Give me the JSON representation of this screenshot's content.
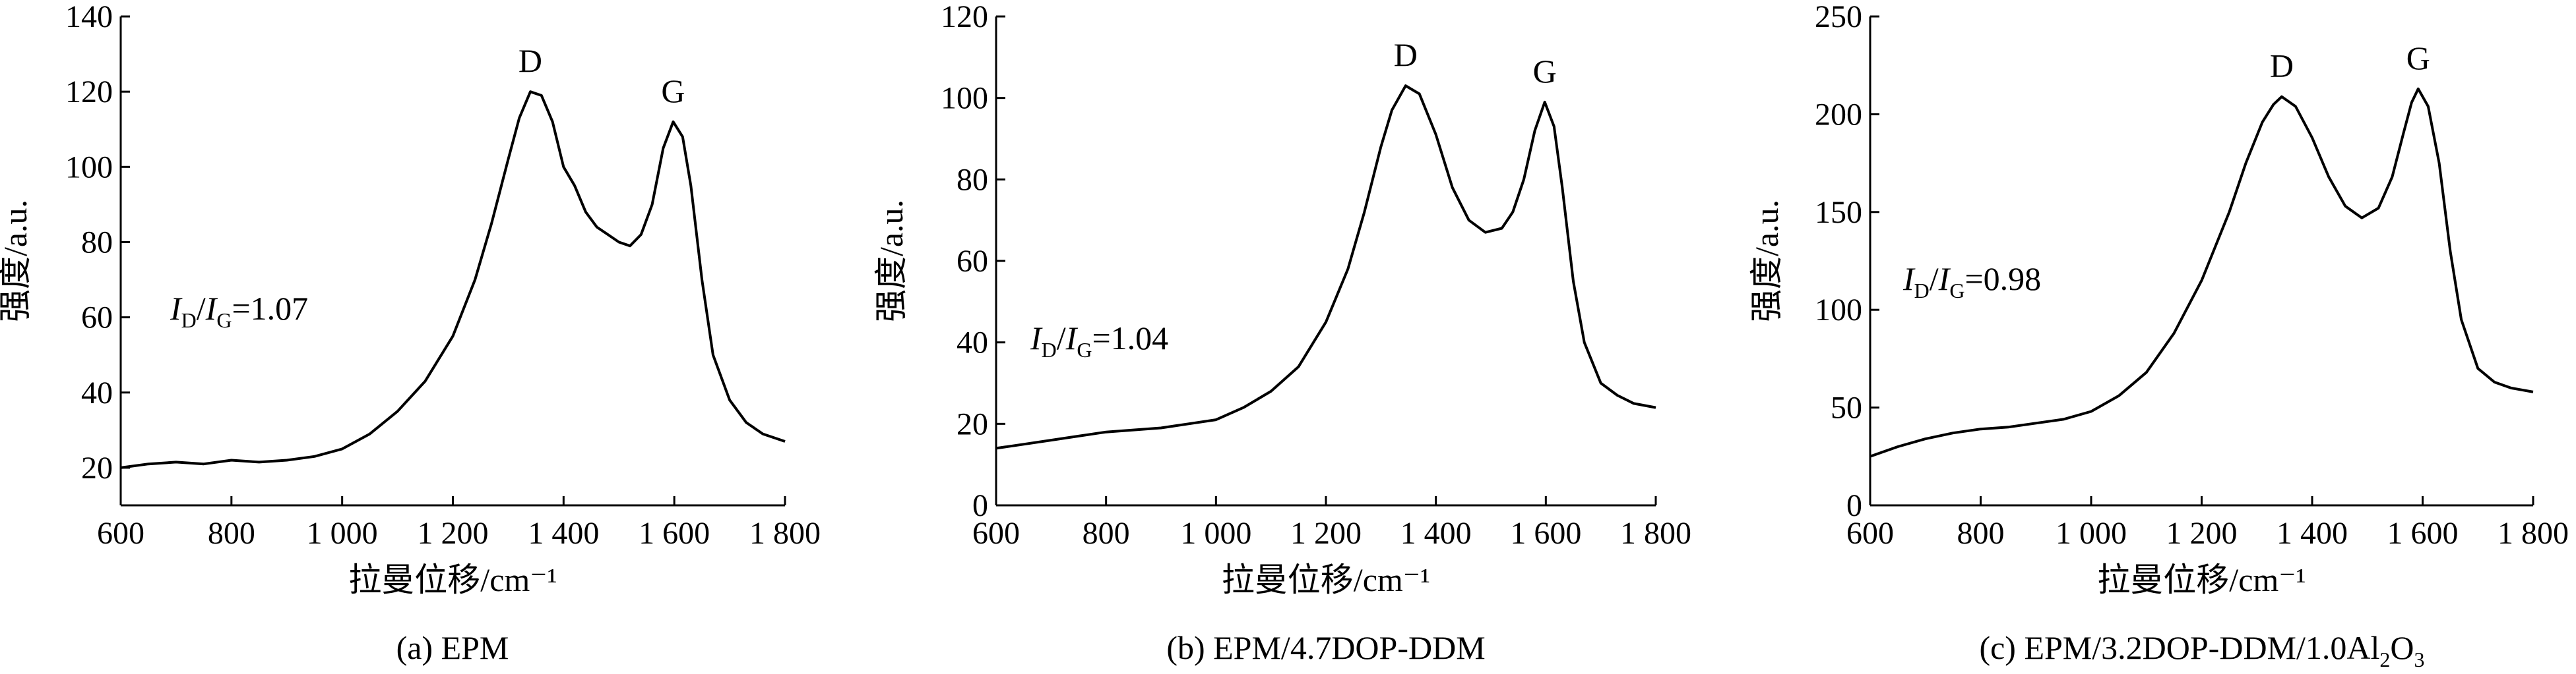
{
  "chart_data": [
    {
      "type": "line",
      "caption": "(a) EPM",
      "xlabel": "拉曼位移/cm⁻¹",
      "ylabel": "强度/a.u.",
      "xlim": [
        600,
        1800
      ],
      "ylim": [
        10,
        140
      ],
      "xticks": [
        600,
        800,
        1000,
        1200,
        1400,
        1600,
        1800
      ],
      "xtick_labels": [
        "600",
        "800",
        "1 000",
        "1 200",
        "1 400",
        "1 600",
        "1 800"
      ],
      "yticks": [
        20,
        40,
        60,
        80,
        100,
        120,
        140
      ],
      "ytick_labels": [
        "20",
        "40",
        "60",
        "80",
        "100",
        "120",
        "140"
      ],
      "ratio": {
        "main": "I",
        "sub1": "D",
        "slash": "/I",
        "sub2": "G",
        "value": "=1.07"
      },
      "peaks": [
        {
          "label": "D",
          "x": 1340,
          "y": 120
        },
        {
          "label": "G",
          "x": 1598,
          "y": 112
        }
      ],
      "series": [
        {
          "x": [
            600,
            650,
            700,
            750,
            800,
            850,
            900,
            950,
            1000,
            1050,
            1100,
            1150,
            1200,
            1240,
            1270,
            1300,
            1320,
            1340,
            1360,
            1380,
            1400,
            1420,
            1440,
            1460,
            1480,
            1500,
            1520,
            1540,
            1560,
            1580,
            1598,
            1615,
            1630,
            1650,
            1670,
            1700,
            1730,
            1760,
            1800
          ],
          "y": [
            20,
            21,
            21.5,
            21,
            22,
            21.5,
            22,
            23,
            25,
            29,
            35,
            43,
            55,
            70,
            85,
            102,
            113,
            120,
            119,
            112,
            100,
            95,
            88,
            84,
            82,
            80,
            79,
            82,
            90,
            105,
            112,
            108,
            95,
            70,
            50,
            38,
            32,
            29,
            27
          ]
        }
      ]
    },
    {
      "type": "line",
      "caption": "(b) EPM/4.7DOP-DDM",
      "xlabel": "拉曼位移/cm⁻¹",
      "ylabel": "强度/a.u.",
      "xlim": [
        600,
        1800
      ],
      "ylim": [
        0,
        120
      ],
      "xticks": [
        600,
        800,
        1000,
        1200,
        1400,
        1600,
        1800
      ],
      "xtick_labels": [
        "600",
        "800",
        "1 000",
        "1 200",
        "1 400",
        "1 600",
        "1 800"
      ],
      "yticks": [
        0,
        20,
        40,
        60,
        80,
        100,
        120
      ],
      "ytick_labels": [
        "0",
        "20",
        "40",
        "60",
        "80",
        "100",
        "120"
      ],
      "ratio": {
        "main": "I",
        "sub1": "D",
        "slash": "/I",
        "sub2": "G",
        "value": "=1.04"
      },
      "peaks": [
        {
          "label": "D",
          "x": 1345,
          "y": 103
        },
        {
          "label": "G",
          "x": 1598,
          "y": 99
        }
      ],
      "series": [
        {
          "x": [
            600,
            650,
            700,
            750,
            800,
            850,
            900,
            950,
            1000,
            1050,
            1100,
            1150,
            1200,
            1240,
            1270,
            1300,
            1320,
            1345,
            1370,
            1400,
            1430,
            1460,
            1490,
            1520,
            1540,
            1560,
            1580,
            1598,
            1615,
            1630,
            1650,
            1670,
            1700,
            1730,
            1760,
            1800
          ],
          "y": [
            14,
            15,
            16,
            17,
            18,
            18.5,
            19,
            20,
            21,
            24,
            28,
            34,
            45,
            58,
            72,
            88,
            97,
            103,
            101,
            91,
            78,
            70,
            67,
            68,
            72,
            80,
            92,
            99,
            93,
            78,
            55,
            40,
            30,
            27,
            25,
            24
          ]
        }
      ]
    },
    {
      "type": "line",
      "caption": "(c) EPM/3.2DOP-DDM/1.0Al",
      "caption_sub": "2",
      "caption_tail": "O",
      "caption_sub2": "3",
      "xlabel": "拉曼位移/cm⁻¹",
      "ylabel": "强度/a.u.",
      "xlim": [
        600,
        1800
      ],
      "ylim": [
        0,
        250
      ],
      "xticks": [
        600,
        800,
        1000,
        1200,
        1400,
        1600,
        1800
      ],
      "xtick_labels": [
        "600",
        "800",
        "1 000",
        "1 200",
        "1 400",
        "1 600",
        "1 800"
      ],
      "yticks": [
        0,
        50,
        100,
        150,
        200,
        250
      ],
      "ytick_labels": [
        "0",
        "50",
        "100",
        "150",
        "200",
        "250"
      ],
      "ratio": {
        "main": "I",
        "sub1": "D",
        "slash": "/I",
        "sub2": "G",
        "value": "=0.98"
      },
      "peaks": [
        {
          "label": "D",
          "x": 1345,
          "y": 209
        },
        {
          "label": "G",
          "x": 1592,
          "y": 213
        }
      ],
      "series": [
        {
          "x": [
            600,
            650,
            700,
            750,
            800,
            850,
            900,
            950,
            1000,
            1050,
            1100,
            1150,
            1200,
            1250,
            1280,
            1310,
            1330,
            1345,
            1370,
            1400,
            1430,
            1460,
            1490,
            1520,
            1545,
            1565,
            1580,
            1592,
            1610,
            1630,
            1650,
            1670,
            1700,
            1730,
            1760,
            1800
          ],
          "y": [
            25,
            30,
            34,
            37,
            39,
            40,
            42,
            44,
            48,
            56,
            68,
            88,
            115,
            150,
            175,
            196,
            205,
            209,
            204,
            188,
            168,
            153,
            147,
            152,
            168,
            190,
            206,
            213,
            204,
            175,
            130,
            95,
            70,
            63,
            60,
            58
          ]
        }
      ]
    }
  ]
}
